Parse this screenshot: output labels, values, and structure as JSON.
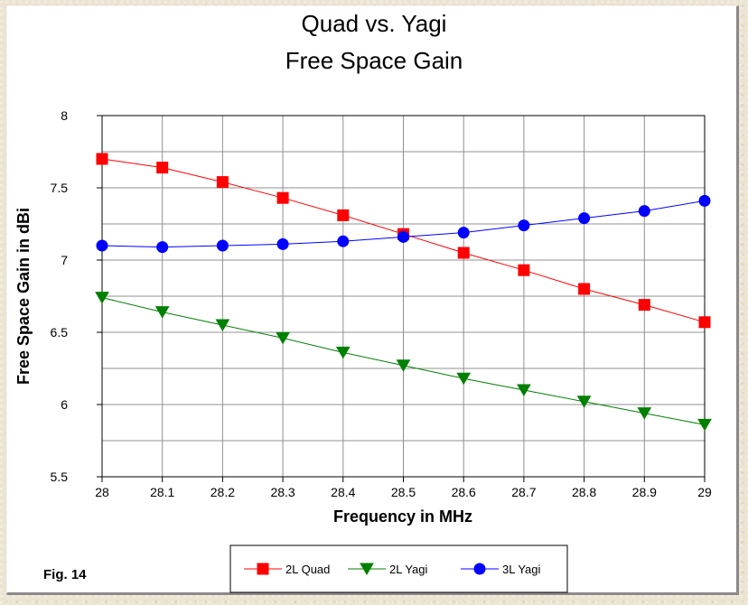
{
  "figure_label": "Fig. 14",
  "chart_data": {
    "type": "line",
    "title": "Quad vs. Yagi",
    "subtitle": "Free Space Gain",
    "xlabel": "Frequency in MHz",
    "ylabel": "Free Space Gain in dBi",
    "x": [
      28,
      28.1,
      28.2,
      28.3,
      28.4,
      28.5,
      28.6,
      28.7,
      28.8,
      28.9,
      29
    ],
    "x_tick_labels": [
      "28",
      "28.1",
      "28.2",
      "28.3",
      "28.4",
      "28.5",
      "28.6",
      "28.7",
      "28.8",
      "28.9",
      "29"
    ],
    "xlim": [
      28,
      29
    ],
    "ylim": [
      5.5,
      8
    ],
    "y_ticks": [
      5.5,
      6,
      6.5,
      7,
      7.5,
      8
    ],
    "y_tick_labels": [
      "5.5",
      "6",
      "6.5",
      "7",
      "7.5",
      "8"
    ],
    "y_minor_gridlines": [
      5.75,
      6.25,
      6.75,
      7.25,
      7.75
    ],
    "grid": true,
    "legend_position": "bottom-center",
    "series": [
      {
        "name": "2L Quad",
        "color": "#ff0000",
        "marker": "square",
        "values": [
          7.7,
          7.64,
          7.54,
          7.43,
          7.31,
          7.18,
          7.05,
          6.93,
          6.8,
          6.69,
          6.57
        ]
      },
      {
        "name": "2L Yagi",
        "color": "#008000",
        "marker": "triangle-down",
        "values": [
          6.74,
          6.64,
          6.55,
          6.46,
          6.36,
          6.27,
          6.18,
          6.1,
          6.02,
          5.94,
          5.86
        ]
      },
      {
        "name": "3L Yagi",
        "color": "#0000ff",
        "marker": "circle",
        "values": [
          7.1,
          7.09,
          7.1,
          7.11,
          7.13,
          7.16,
          7.19,
          7.24,
          7.29,
          7.34,
          7.41
        ]
      }
    ]
  }
}
